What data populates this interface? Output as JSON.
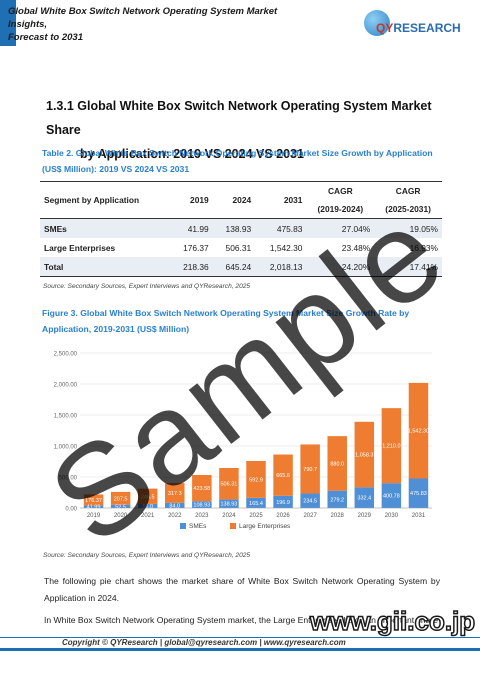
{
  "header": {
    "title_line1": "Global White Box Switch Network Operating System Market Insights,",
    "title_line2": "Forecast to 2031",
    "logo_prefix": "QY",
    "logo_suffix": "RESEARCH"
  },
  "section": {
    "title_line1": "1.3.1  Global White Box Switch Network Operating System Market Share",
    "title_line2": "by Application: 2019 VS 2024 VS 2031"
  },
  "table": {
    "caption_line1": "Table 2.   Global White Box Switch Network Operating System Market Size Growth by Application",
    "caption_line2": "(US$ Million): 2019 VS 2024 VS 2031",
    "headers": {
      "segment": "Segment by Application",
      "y2019": "2019",
      "y2024": "2024",
      "y2031": "2031",
      "cagr1": "CAGR",
      "cagr1_range": "(2019-2024)",
      "cagr2": "CAGR",
      "cagr2_range": "(2025-2031)"
    },
    "rows": [
      {
        "segment": "SMEs",
        "y2019": "41.99",
        "y2024": "138.93",
        "y2031": "475.83",
        "cagr1": "27.04%",
        "cagr2": "19.05%"
      },
      {
        "segment": "Large Enterprises",
        "y2019": "176.37",
        "y2024": "506.31",
        "y2031": "1,542.30",
        "cagr1": "23.48%",
        "cagr2": "16.93%"
      },
      {
        "segment": "Total",
        "y2019": "218.36",
        "y2024": "645.24",
        "y2031": "2,018.13",
        "cagr1": "24.20%",
        "cagr2": "17.41%"
      }
    ],
    "source": "Source: Secondary Sources, Expert Interviews and QYResearch, 2025"
  },
  "figure": {
    "caption_line1": "Figure 3.   Global White Box Switch Network Operating System Market Size Growth Rate by",
    "caption_line2": "Application, 2019-2031 (US$ Million)",
    "source": "Source: Secondary Sources, Expert Interviews and QYResearch, 2025"
  },
  "chart_data": {
    "type": "bar",
    "stacked": true,
    "categories": [
      "2019",
      "2020",
      "2021",
      "2022",
      "2023",
      "2024",
      "2025",
      "2026",
      "2027",
      "2028",
      "2029",
      "2030",
      "2031"
    ],
    "series": [
      {
        "name": "SMEs",
        "color": "#4f8fd6",
        "values": [
          41.99,
          52.5,
          66.0,
          84.0,
          108.93,
          138.93,
          165.4,
          196.9,
          234.5,
          279.2,
          332.4,
          400.78,
          475.83
        ]
      },
      {
        "name": "Large Enterprises",
        "color": "#ee7d31",
        "values": [
          176.37,
          207.5,
          246.5,
          317.3,
          423.58,
          506.31,
          592.9,
          665.6,
          790.7,
          880.0,
          1058.3,
          1210.0,
          1542.3
        ]
      }
    ],
    "labels": [
      [
        "176.37",
        "207.5",
        "246.5",
        "317.3",
        "423.58",
        "506.31",
        "592.9",
        "665.6",
        "790.7",
        "880.0",
        "1,058.3",
        "1,210.0",
        "1,542.30"
      ],
      [
        "41.99",
        "52.5",
        "66.0",
        "84.0",
        "108.93",
        "138.93",
        "165.4",
        "196.9",
        "234.5",
        "279.2",
        "332.4",
        "400.78",
        "475.83"
      ]
    ],
    "ylim": [
      0,
      2500
    ],
    "yticks": [
      "0.00",
      "500.00",
      "1,000.00",
      "1,500.00",
      "2,000.00",
      "2,500.00"
    ],
    "grid": true,
    "legend": "bottom"
  },
  "body": {
    "para1": "The following pie chart shows the market share of White Box Switch Network Operating System by Application in 2024.",
    "para2": "In White Box Switch Network Operating System market, the Large Enterprises holds an important share"
  },
  "footer": {
    "text": "Copyright © QYResearch | global@qyresearch.com | www.qyresearch.com"
  },
  "watermarks": {
    "sample": "Sample",
    "gii": "www.gii.co.jp"
  }
}
